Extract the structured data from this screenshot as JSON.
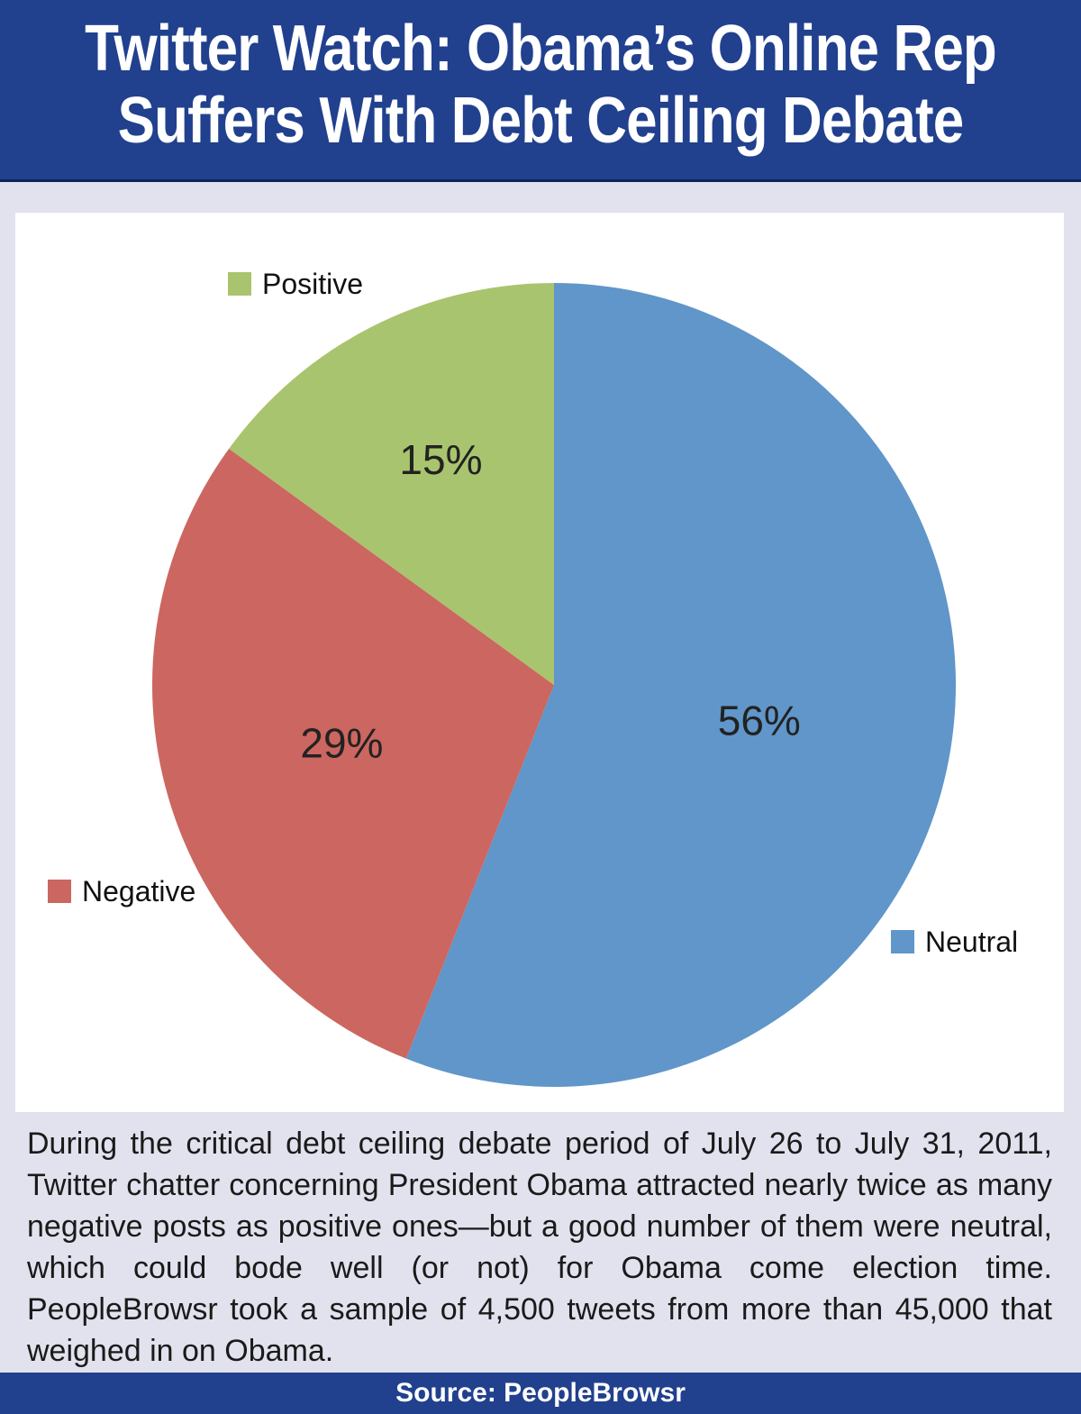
{
  "header": {
    "title_line1": "Twitter Watch: Obama’s Online Rep",
    "title_line2": "Suffers With Debt Ceiling Debate"
  },
  "chart_data": {
    "type": "pie",
    "start_angle_deg": 0,
    "direction": "clockwise",
    "slices": [
      {
        "name": "Neutral",
        "value": 56,
        "label": "56%",
        "color": "#6096c9"
      },
      {
        "name": "Negative",
        "value": 29,
        "label": "29%",
        "color": "#cc6660"
      },
      {
        "name": "Positive",
        "value": 15,
        "label": "15%",
        "color": "#a9c46e"
      }
    ]
  },
  "caption": "During the critical debt ceiling debate period of July 26 to July 31, 2011, Twitter chatter concerning President Obama attracted nearly twice as many negative posts as positive ones—but a good number of them were neutral, which could bode well (or not) for Obama come election time. PeopleBrowsr took a sample of 4,500 tweets from more than 45,000 that weighed in on Obama.",
  "footer": {
    "source": "Source: PeopleBrowsr"
  }
}
